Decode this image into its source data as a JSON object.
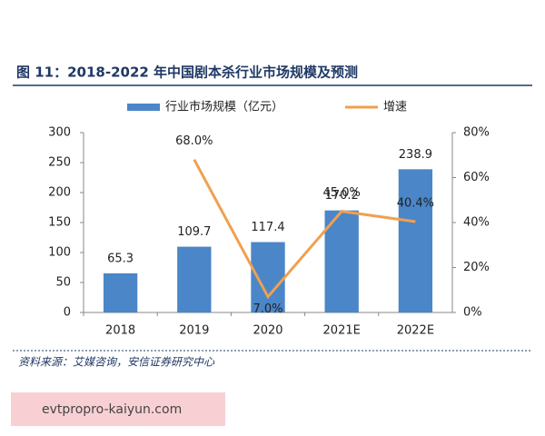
{
  "chart_data": {
    "type": "bar",
    "title": "图 11：2018-2022 年中国剧本杀行业市场规模及预测",
    "categories": [
      "2018",
      "2019",
      "2020",
      "2021E",
      "2022E"
    ],
    "series": [
      {
        "name": "行业市场规模（亿元）",
        "type": "bar",
        "color": "#4a86c8",
        "values": [
          65.3,
          109.7,
          117.4,
          170.2,
          238.9
        ]
      },
      {
        "name": "增速",
        "type": "line",
        "axis": "y2",
        "color": "#f0a050",
        "values": [
          null,
          68.0,
          7.0,
          45.0,
          40.4
        ],
        "value_labels": [
          null,
          "68.0%",
          "7.0%",
          "45.0%",
          "40.4%"
        ]
      }
    ],
    "ylim": [
      0,
      300
    ],
    "yticks": [
      0,
      50,
      100,
      150,
      200,
      250,
      300
    ],
    "y2lim": [
      0,
      80
    ],
    "y2ticks": [
      {
        "value": 0,
        "label": "0%"
      },
      {
        "value": 20,
        "label": "20%"
      },
      {
        "value": 40,
        "label": "40%"
      },
      {
        "value": 60,
        "label": "60%"
      },
      {
        "value": 80,
        "label": "80%"
      }
    ],
    "legend": "top",
    "source": "资料来源：艾媒咨询，安信证券研究中心"
  },
  "watermark": "evtpropro-kaiyun.com"
}
